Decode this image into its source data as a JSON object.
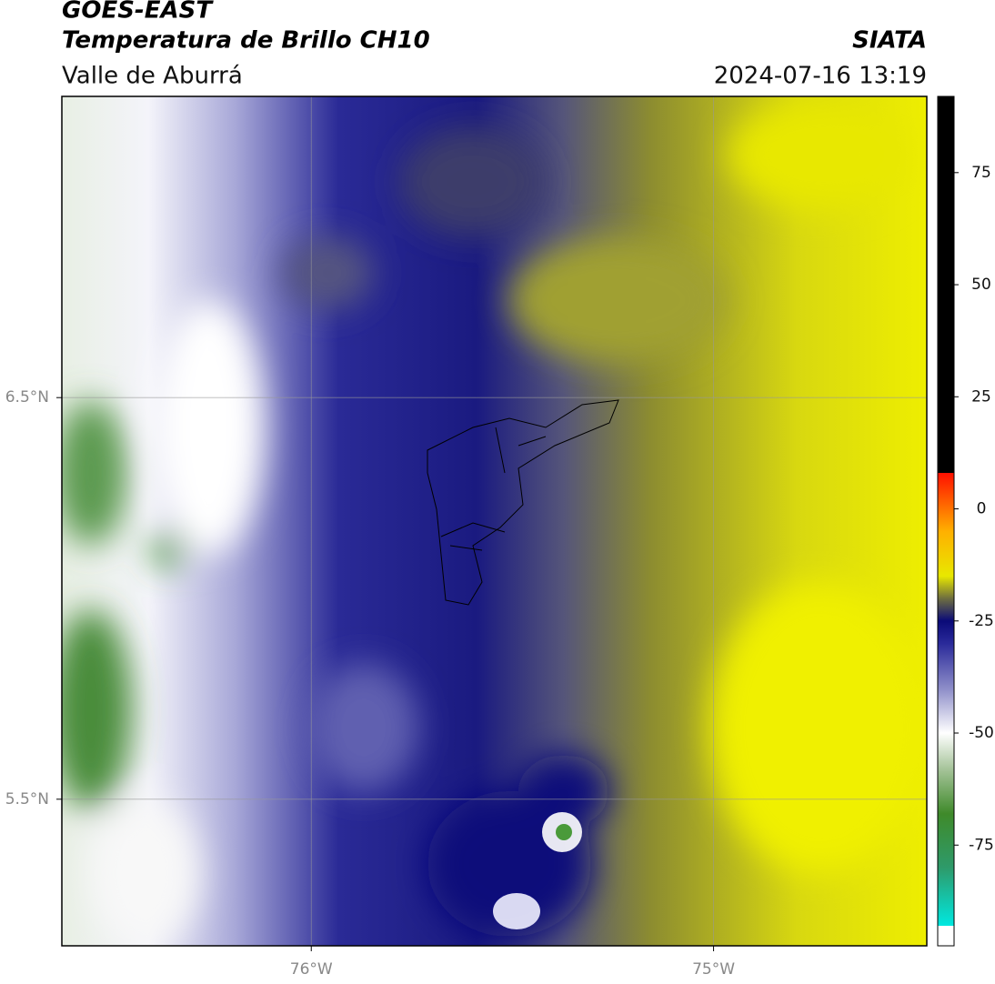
{
  "map": {
    "title": "GOES-EAST",
    "subtitle": "Temperatura de Brillo CH10",
    "region": "Valle de Aburrá",
    "source": "SIATA",
    "datetime": "2024-07-16 13:19",
    "xlim": [
      -76.62,
      -74.47
    ],
    "ylim": [
      5.135,
      7.25
    ],
    "xticks": [
      {
        "value": -76,
        "label": "76°W"
      },
      {
        "value": -75,
        "label": "75°W"
      }
    ],
    "yticks": [
      {
        "value": 6.5,
        "label": "6.5°N"
      },
      {
        "value": 5.5,
        "label": "5.5°N"
      }
    ],
    "grid": true,
    "colorbar": {
      "clim": [
        -93,
        92
      ],
      "ticks": [
        75,
        50,
        25,
        0,
        -25,
        -50,
        -75
      ],
      "stops": [
        [
          -93,
          "#00e8e0"
        ],
        [
          -80,
          "#2e9a6a"
        ],
        [
          -68,
          "#3f8a2a"
        ],
        [
          -58,
          "#a6c49a"
        ],
        [
          -50,
          "#ffffff"
        ],
        [
          -40,
          "#8c8cc8"
        ],
        [
          -30,
          "#2a2a9a"
        ],
        [
          -25,
          "#0a0a78"
        ],
        [
          -20,
          "#6e6e40"
        ],
        [
          -15,
          "#e8e800"
        ],
        [
          -5,
          "#ffb000"
        ],
        [
          8,
          "#ff1000"
        ],
        [
          8.01,
          "#000000"
        ],
        [
          92,
          "#000000"
        ]
      ]
    }
  }
}
